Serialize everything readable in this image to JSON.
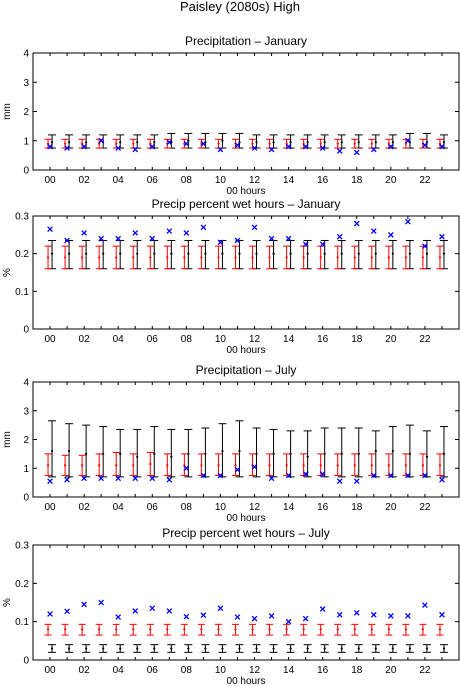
{
  "figure_title": "Paisley (2080s) High",
  "colors": {
    "observed": "#0000ff",
    "control": "#ff0000",
    "scenario": "#000000",
    "axes": "#000000"
  },
  "chart_data": [
    {
      "type": "errorbar",
      "title": "Precipitation – January",
      "xlabel": "00 hours",
      "ylabel": "mm",
      "xlim": [
        -1,
        24
      ],
      "ylim": [
        0,
        4
      ],
      "xticks": [
        "00",
        "02",
        "04",
        "06",
        "08",
        "10",
        "12",
        "14",
        "16",
        "18",
        "20",
        "22"
      ],
      "yticks": [
        "0",
        "1",
        "2",
        "3",
        "4"
      ],
      "x": [
        0,
        1,
        2,
        3,
        4,
        5,
        6,
        7,
        8,
        9,
        10,
        11,
        12,
        13,
        14,
        15,
        16,
        17,
        18,
        19,
        20,
        21,
        22,
        23
      ],
      "observed": [
        0.8,
        0.75,
        0.8,
        1.0,
        0.75,
        0.7,
        0.8,
        0.95,
        0.9,
        0.9,
        0.7,
        0.85,
        0.75,
        0.7,
        0.8,
        0.8,
        0.75,
        0.65,
        0.6,
        0.7,
        0.8,
        1.0,
        0.85,
        0.8
      ],
      "control": {
        "median": [
          0.9,
          0.9,
          0.9,
          0.9,
          0.9,
          0.9,
          0.9,
          0.9,
          0.9,
          0.9,
          0.9,
          0.9,
          0.9,
          0.9,
          0.9,
          0.9,
          0.9,
          0.9,
          0.9,
          0.9,
          0.9,
          0.9,
          0.9,
          0.9
        ],
        "low": [
          0.75,
          0.75,
          0.75,
          0.75,
          0.75,
          0.75,
          0.75,
          0.75,
          0.75,
          0.75,
          0.75,
          0.75,
          0.75,
          0.75,
          0.75,
          0.75,
          0.75,
          0.75,
          0.75,
          0.75,
          0.75,
          0.75,
          0.75,
          0.75
        ],
        "high": [
          1.05,
          1.05,
          1.05,
          1.05,
          1.05,
          1.05,
          1.05,
          1.05,
          1.05,
          1.05,
          1.05,
          1.05,
          1.05,
          1.05,
          1.05,
          1.05,
          1.05,
          1.05,
          1.05,
          1.05,
          1.05,
          1.05,
          1.05,
          1.05
        ]
      },
      "scenario": {
        "median": [
          0.95,
          0.95,
          0.95,
          0.95,
          0.95,
          0.95,
          0.95,
          0.95,
          1.0,
          0.95,
          1.0,
          0.95,
          0.95,
          0.95,
          0.95,
          0.95,
          0.95,
          0.95,
          0.95,
          0.95,
          0.95,
          0.95,
          0.95,
          0.95
        ],
        "low": [
          0.75,
          0.75,
          0.75,
          0.75,
          0.75,
          0.75,
          0.75,
          0.75,
          0.75,
          0.75,
          0.75,
          0.75,
          0.75,
          0.75,
          0.75,
          0.75,
          0.75,
          0.75,
          0.75,
          0.75,
          0.75,
          0.75,
          0.75,
          0.75
        ],
        "high": [
          1.2,
          1.2,
          1.2,
          1.2,
          1.2,
          1.2,
          1.2,
          1.25,
          1.25,
          1.25,
          1.25,
          1.25,
          1.2,
          1.2,
          1.2,
          1.2,
          1.2,
          1.2,
          1.2,
          1.2,
          1.2,
          1.25,
          1.25,
          1.2
        ]
      }
    },
    {
      "type": "errorbar",
      "title": "Precip percent wet hours – January",
      "xlabel": "00 hours",
      "ylabel": "%",
      "xlim": [
        -1,
        24
      ],
      "ylim": [
        0,
        0.3
      ],
      "xticks": [
        "00",
        "02",
        "04",
        "06",
        "08",
        "10",
        "12",
        "14",
        "16",
        "18",
        "20",
        "22"
      ],
      "yticks": [
        "0",
        "0.1",
        "0.2",
        "0.3"
      ],
      "x": [
        0,
        1,
        2,
        3,
        4,
        5,
        6,
        7,
        8,
        9,
        10,
        11,
        12,
        13,
        14,
        15,
        16,
        17,
        18,
        19,
        20,
        21,
        22,
        23
      ],
      "observed": [
        0.265,
        0.235,
        0.255,
        0.24,
        0.24,
        0.255,
        0.24,
        0.26,
        0.255,
        0.27,
        0.23,
        0.235,
        0.27,
        0.24,
        0.24,
        0.225,
        0.225,
        0.245,
        0.28,
        0.26,
        0.25,
        0.285,
        0.22,
        0.245
      ],
      "control": {
        "median": [
          0.19,
          0.19,
          0.19,
          0.19,
          0.19,
          0.19,
          0.19,
          0.19,
          0.19,
          0.19,
          0.19,
          0.19,
          0.19,
          0.19,
          0.19,
          0.19,
          0.19,
          0.19,
          0.19,
          0.19,
          0.19,
          0.19,
          0.19,
          0.19
        ],
        "low": [
          0.16,
          0.16,
          0.16,
          0.16,
          0.16,
          0.16,
          0.16,
          0.16,
          0.16,
          0.16,
          0.16,
          0.16,
          0.16,
          0.16,
          0.16,
          0.16,
          0.16,
          0.16,
          0.16,
          0.16,
          0.16,
          0.16,
          0.16,
          0.16
        ],
        "high": [
          0.22,
          0.22,
          0.22,
          0.22,
          0.22,
          0.22,
          0.22,
          0.22,
          0.22,
          0.22,
          0.22,
          0.22,
          0.22,
          0.22,
          0.22,
          0.22,
          0.22,
          0.22,
          0.22,
          0.22,
          0.22,
          0.22,
          0.22,
          0.22
        ]
      },
      "scenario": {
        "median": [
          0.2,
          0.2,
          0.2,
          0.2,
          0.2,
          0.2,
          0.2,
          0.2,
          0.2,
          0.2,
          0.2,
          0.2,
          0.2,
          0.2,
          0.2,
          0.2,
          0.2,
          0.2,
          0.2,
          0.2,
          0.2,
          0.2,
          0.2,
          0.2
        ],
        "low": [
          0.16,
          0.16,
          0.16,
          0.16,
          0.16,
          0.16,
          0.16,
          0.16,
          0.16,
          0.16,
          0.16,
          0.16,
          0.16,
          0.16,
          0.16,
          0.16,
          0.16,
          0.16,
          0.16,
          0.16,
          0.16,
          0.16,
          0.16,
          0.16
        ],
        "high": [
          0.235,
          0.235,
          0.235,
          0.235,
          0.235,
          0.235,
          0.235,
          0.235,
          0.235,
          0.235,
          0.235,
          0.235,
          0.235,
          0.235,
          0.235,
          0.235,
          0.235,
          0.235,
          0.235,
          0.235,
          0.235,
          0.235,
          0.235,
          0.235
        ]
      }
    },
    {
      "type": "errorbar",
      "title": "Precipitation – July",
      "xlabel": "00 hours",
      "ylabel": "mm",
      "xlim": [
        -1,
        24
      ],
      "ylim": [
        0,
        4
      ],
      "xticks": [
        "00",
        "02",
        "04",
        "06",
        "08",
        "10",
        "12",
        "14",
        "16",
        "18",
        "20",
        "22"
      ],
      "yticks": [
        "0",
        "1",
        "2",
        "3",
        "4"
      ],
      "x": [
        0,
        1,
        2,
        3,
        4,
        5,
        6,
        7,
        8,
        9,
        10,
        11,
        12,
        13,
        14,
        15,
        16,
        17,
        18,
        19,
        20,
        21,
        22,
        23
      ],
      "observed": [
        0.55,
        0.6,
        0.65,
        0.65,
        0.65,
        0.65,
        0.65,
        0.6,
        1.0,
        0.75,
        0.75,
        0.95,
        1.05,
        0.65,
        0.75,
        0.8,
        0.8,
        0.55,
        0.55,
        0.75,
        0.75,
        0.75,
        0.75,
        0.6
      ],
      "control": {
        "median": [
          1.1,
          1.1,
          1.1,
          1.1,
          1.1,
          1.1,
          1.15,
          1.1,
          1.1,
          1.1,
          1.1,
          1.1,
          1.1,
          1.1,
          1.1,
          1.1,
          1.1,
          1.1,
          1.1,
          1.1,
          1.1,
          1.1,
          1.1,
          1.1
        ],
        "low": [
          0.75,
          0.75,
          0.75,
          0.75,
          0.75,
          0.75,
          0.75,
          0.75,
          0.75,
          0.75,
          0.75,
          0.75,
          0.75,
          0.75,
          0.75,
          0.75,
          0.75,
          0.75,
          0.75,
          0.75,
          0.75,
          0.75,
          0.75,
          0.75
        ],
        "high": [
          1.5,
          1.45,
          1.45,
          1.5,
          1.55,
          1.5,
          1.55,
          1.5,
          1.5,
          1.5,
          1.5,
          1.5,
          1.5,
          1.5,
          1.5,
          1.5,
          1.5,
          1.5,
          1.5,
          1.5,
          1.5,
          1.5,
          1.5,
          1.5
        ]
      },
      "scenario": {
        "median": [
          1.6,
          1.6,
          1.5,
          1.5,
          1.5,
          1.4,
          1.5,
          1.4,
          1.5,
          1.5,
          1.6,
          1.6,
          1.5,
          1.5,
          1.5,
          1.4,
          1.5,
          1.5,
          1.5,
          1.6,
          1.6,
          1.5,
          1.4,
          1.5
        ],
        "low": [
          0.7,
          0.7,
          0.7,
          0.7,
          0.7,
          0.7,
          0.7,
          0.7,
          0.7,
          0.7,
          0.7,
          0.7,
          0.7,
          0.7,
          0.7,
          0.7,
          0.7,
          0.7,
          0.7,
          0.7,
          0.7,
          0.7,
          0.7,
          0.7
        ],
        "high": [
          2.65,
          2.55,
          2.5,
          2.45,
          2.35,
          2.35,
          2.45,
          2.35,
          2.35,
          2.4,
          2.55,
          2.65,
          2.4,
          2.35,
          2.3,
          2.3,
          2.4,
          2.4,
          2.4,
          2.3,
          2.45,
          2.5,
          2.3,
          2.45
        ]
      }
    },
    {
      "type": "errorbar",
      "title": "Precip percent wet hours – July",
      "xlabel": "00 hours",
      "ylabel": "%",
      "xlim": [
        -1,
        24
      ],
      "ylim": [
        0,
        0.3
      ],
      "xticks": [
        "00",
        "02",
        "04",
        "06",
        "08",
        "10",
        "12",
        "14",
        "16",
        "18",
        "20",
        "22"
      ],
      "yticks": [
        "0",
        "0.1",
        "0.2",
        "0.3"
      ],
      "x": [
        0,
        1,
        2,
        3,
        4,
        5,
        6,
        7,
        8,
        9,
        10,
        11,
        12,
        13,
        14,
        15,
        16,
        17,
        18,
        19,
        20,
        21,
        22,
        23
      ],
      "observed": [
        0.12,
        0.127,
        0.145,
        0.15,
        0.112,
        0.128,
        0.135,
        0.128,
        0.113,
        0.117,
        0.135,
        0.112,
        0.108,
        0.115,
        0.1,
        0.108,
        0.133,
        0.118,
        0.123,
        0.118,
        0.115,
        0.115,
        0.143,
        0.118
      ],
      "control": {
        "median": [
          0.08,
          0.08,
          0.08,
          0.08,
          0.08,
          0.08,
          0.08,
          0.08,
          0.08,
          0.08,
          0.08,
          0.08,
          0.08,
          0.08,
          0.08,
          0.08,
          0.08,
          0.08,
          0.08,
          0.08,
          0.08,
          0.08,
          0.08,
          0.08
        ],
        "low": [
          0.065,
          0.065,
          0.065,
          0.065,
          0.065,
          0.065,
          0.065,
          0.065,
          0.065,
          0.065,
          0.065,
          0.065,
          0.065,
          0.065,
          0.065,
          0.065,
          0.065,
          0.065,
          0.065,
          0.065,
          0.065,
          0.065,
          0.065,
          0.065
        ],
        "high": [
          0.093,
          0.093,
          0.093,
          0.093,
          0.093,
          0.093,
          0.093,
          0.093,
          0.093,
          0.093,
          0.093,
          0.093,
          0.093,
          0.093,
          0.093,
          0.093,
          0.093,
          0.093,
          0.093,
          0.093,
          0.093,
          0.093,
          0.093,
          0.093
        ]
      },
      "scenario": {
        "median": [
          0.03,
          0.03,
          0.03,
          0.03,
          0.03,
          0.03,
          0.03,
          0.03,
          0.03,
          0.03,
          0.03,
          0.03,
          0.03,
          0.03,
          0.03,
          0.03,
          0.03,
          0.03,
          0.03,
          0.03,
          0.03,
          0.03,
          0.03,
          0.03
        ],
        "low": [
          0.02,
          0.02,
          0.02,
          0.02,
          0.02,
          0.02,
          0.02,
          0.02,
          0.02,
          0.02,
          0.02,
          0.02,
          0.02,
          0.02,
          0.02,
          0.02,
          0.02,
          0.02,
          0.02,
          0.02,
          0.02,
          0.02,
          0.02,
          0.02
        ],
        "high": [
          0.04,
          0.04,
          0.04,
          0.04,
          0.04,
          0.04,
          0.04,
          0.04,
          0.04,
          0.04,
          0.04,
          0.04,
          0.04,
          0.04,
          0.04,
          0.04,
          0.04,
          0.04,
          0.04,
          0.04,
          0.04,
          0.04,
          0.04,
          0.04
        ]
      }
    }
  ]
}
